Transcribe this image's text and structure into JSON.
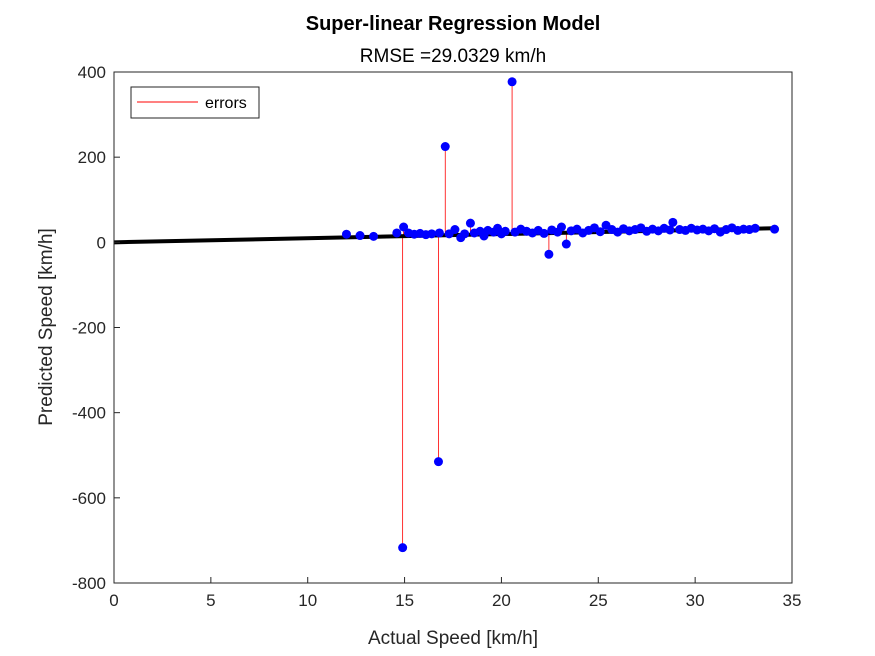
{
  "chart_data": {
    "type": "scatter",
    "title": "Super-linear Regression Model",
    "subtitle": "RMSE =29.0329 km/h",
    "xlabel": "Actual Speed [km/h]",
    "ylabel": "Predicted Speed [km/h]",
    "xlim": [
      0,
      35
    ],
    "ylim": [
      -800,
      400
    ],
    "xticks": [
      0,
      5,
      10,
      15,
      20,
      25,
      30,
      35
    ],
    "yticks": [
      -800,
      -600,
      -400,
      -200,
      0,
      200,
      400
    ],
    "grid": false,
    "legend": {
      "position": "top-left",
      "entries": [
        "errors"
      ]
    },
    "colors": {
      "points": "#0000ff",
      "errors": "#ff0000",
      "fit": "#000000"
    },
    "fit_line": {
      "x": [
        0,
        34.1
      ],
      "y": [
        0,
        33
      ]
    },
    "series": [
      {
        "marker": "dot",
        "points": [
          {
            "x": 12.0,
            "y": 19
          },
          {
            "x": 12.7,
            "y": 16
          },
          {
            "x": 13.4,
            "y": 14
          },
          {
            "x": 14.6,
            "y": 22
          },
          {
            "x": 14.9,
            "y": -717
          },
          {
            "x": 14.95,
            "y": 36
          },
          {
            "x": 15.2,
            "y": 22
          },
          {
            "x": 15.5,
            "y": 19
          },
          {
            "x": 15.8,
            "y": 21
          },
          {
            "x": 16.1,
            "y": 18
          },
          {
            "x": 16.4,
            "y": 20
          },
          {
            "x": 16.75,
            "y": -515
          },
          {
            "x": 16.8,
            "y": 22
          },
          {
            "x": 17.1,
            "y": 225
          },
          {
            "x": 17.3,
            "y": 20
          },
          {
            "x": 17.6,
            "y": 30
          },
          {
            "x": 17.9,
            "y": 11
          },
          {
            "x": 18.1,
            "y": 20
          },
          {
            "x": 18.4,
            "y": 45
          },
          {
            "x": 18.6,
            "y": 22
          },
          {
            "x": 18.9,
            "y": 26
          },
          {
            "x": 19.1,
            "y": 15
          },
          {
            "x": 19.3,
            "y": 28
          },
          {
            "x": 19.6,
            "y": 24
          },
          {
            "x": 19.8,
            "y": 33
          },
          {
            "x": 20.0,
            "y": 20
          },
          {
            "x": 20.2,
            "y": 26
          },
          {
            "x": 20.55,
            "y": 377
          },
          {
            "x": 20.7,
            "y": 24
          },
          {
            "x": 21.0,
            "y": 31
          },
          {
            "x": 21.3,
            "y": 26
          },
          {
            "x": 21.6,
            "y": 22
          },
          {
            "x": 21.9,
            "y": 28
          },
          {
            "x": 22.2,
            "y": 21
          },
          {
            "x": 22.45,
            "y": -28
          },
          {
            "x": 22.6,
            "y": 29
          },
          {
            "x": 22.9,
            "y": 24
          },
          {
            "x": 23.1,
            "y": 36
          },
          {
            "x": 23.35,
            "y": -4
          },
          {
            "x": 23.6,
            "y": 27
          },
          {
            "x": 23.9,
            "y": 31
          },
          {
            "x": 24.2,
            "y": 22
          },
          {
            "x": 24.5,
            "y": 28
          },
          {
            "x": 24.8,
            "y": 34
          },
          {
            "x": 25.1,
            "y": 25
          },
          {
            "x": 25.4,
            "y": 40
          },
          {
            "x": 25.7,
            "y": 30
          },
          {
            "x": 26.0,
            "y": 24
          },
          {
            "x": 26.3,
            "y": 32
          },
          {
            "x": 26.6,
            "y": 27
          },
          {
            "x": 26.9,
            "y": 30
          },
          {
            "x": 27.2,
            "y": 34
          },
          {
            "x": 27.5,
            "y": 26
          },
          {
            "x": 27.8,
            "y": 31
          },
          {
            "x": 28.1,
            "y": 27
          },
          {
            "x": 28.4,
            "y": 33
          },
          {
            "x": 28.7,
            "y": 29
          },
          {
            "x": 28.85,
            "y": 47
          },
          {
            "x": 29.2,
            "y": 30
          },
          {
            "x": 29.5,
            "y": 28
          },
          {
            "x": 29.8,
            "y": 33
          },
          {
            "x": 30.1,
            "y": 29
          },
          {
            "x": 30.4,
            "y": 31
          },
          {
            "x": 30.7,
            "y": 27
          },
          {
            "x": 31.0,
            "y": 32
          },
          {
            "x": 31.3,
            "y": 24
          },
          {
            "x": 31.6,
            "y": 30
          },
          {
            "x": 31.9,
            "y": 34
          },
          {
            "x": 32.2,
            "y": 28
          },
          {
            "x": 32.5,
            "y": 31
          },
          {
            "x": 32.8,
            "y": 30
          },
          {
            "x": 33.1,
            "y": 33
          },
          {
            "x": 34.1,
            "y": 31
          }
        ]
      }
    ]
  }
}
